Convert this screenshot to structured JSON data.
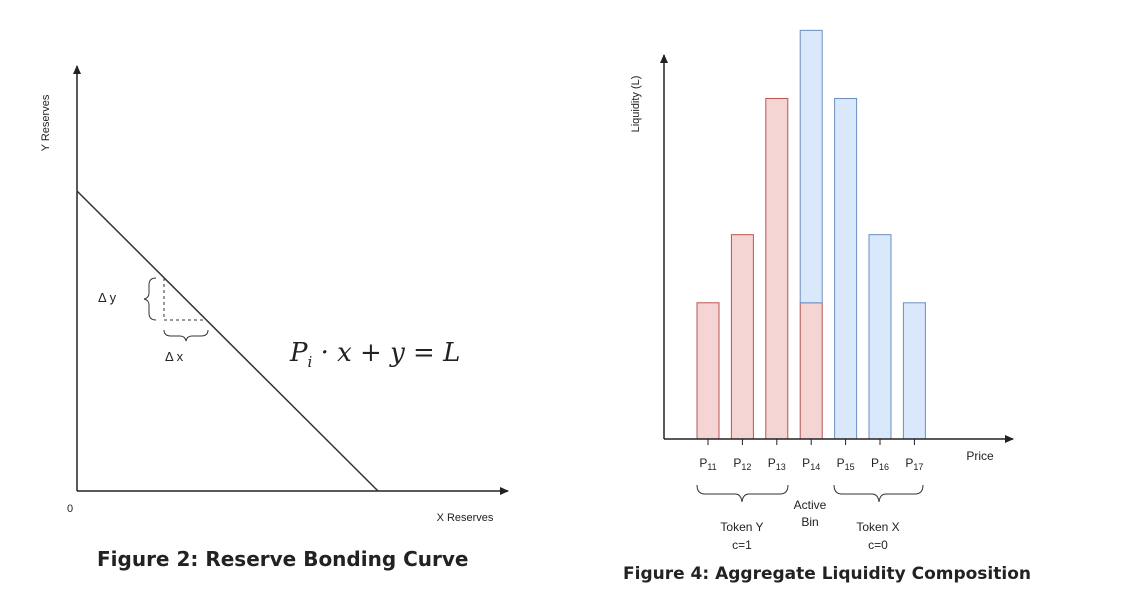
{
  "chart_data": [
    {
      "type": "line",
      "caption": "Figure 2: Reserve Bonding Curve",
      "xlabel": "X Reserves",
      "ylabel": "Y Reserves",
      "origin_label": "0",
      "formula": {
        "P": "P",
        "sub": "i",
        "rest": "· x + y = L"
      },
      "x": [
        0,
        1
      ],
      "y": [
        1,
        0
      ],
      "annotations": {
        "dy": "Δ y",
        "dx": "Δ x"
      }
    },
    {
      "type": "bar",
      "caption": "Figure 4: Aggregate Liquidity Composition",
      "xlabel": "Price",
      "ylabel": "Liquidity (L)",
      "categories": [
        {
          "p": "P",
          "sub": "11"
        },
        {
          "p": "P",
          "sub": "12"
        },
        {
          "p": "P",
          "sub": "13"
        },
        {
          "p": "P",
          "sub": "14"
        },
        {
          "p": "P",
          "sub": "15"
        },
        {
          "p": "P",
          "sub": "16"
        },
        {
          "p": "P",
          "sub": "17"
        }
      ],
      "ylim": [
        0,
        6
      ],
      "series": [
        {
          "key": "y",
          "color": "#f5d5d3",
          "stroke": "#b85450",
          "values": [
            2,
            3,
            5,
            2,
            0,
            0,
            0
          ]
        },
        {
          "key": "x",
          "color": "#dae8fc",
          "stroke": "#6c8ebf",
          "values": [
            0,
            0,
            0,
            4,
            5,
            3,
            2
          ]
        }
      ],
      "groups": {
        "left": [
          "Token Y",
          "c=1"
        ],
        "middle": [
          "Active",
          "Bin"
        ],
        "right": [
          "Token X",
          "c=0"
        ]
      }
    }
  ]
}
